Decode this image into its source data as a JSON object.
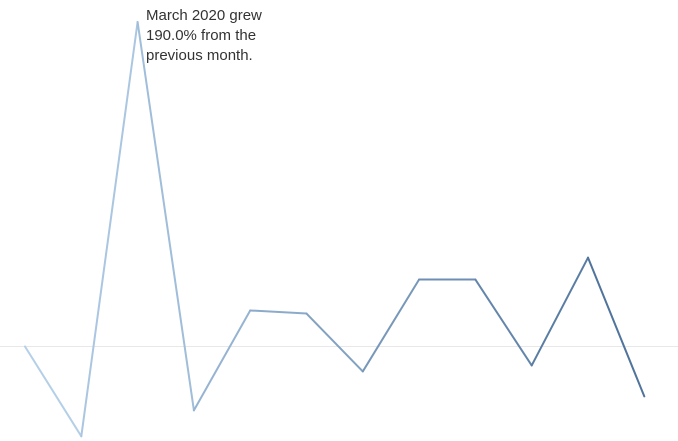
{
  "chart_data": {
    "type": "line",
    "title": "",
    "xlabel": "",
    "ylabel": "",
    "values": [
      0,
      -52.6,
      190.0,
      -37.4,
      21.1,
      19.3,
      -14.6,
      39.2,
      39.2,
      -11.1,
      52.0,
      -29.2
    ],
    "ylim": [
      -53,
      190
    ],
    "zero_line": true,
    "grid": false,
    "color_start": "#b9d4ec",
    "color_end": "#4b6f98",
    "annotation": {
      "point_index": 2,
      "text": "March 2020 grew 190.0% from the previous month."
    }
  }
}
